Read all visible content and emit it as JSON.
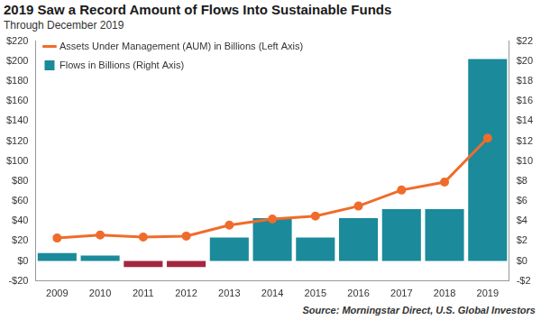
{
  "chart_data": {
    "type": "bar",
    "title": "2019 Saw a Record Amount of Flows Into Sustainable Funds",
    "subtitle": "Through December 2019",
    "source": "Source: Morningstar Direct, U.S. Global Investors",
    "categories": [
      "2009",
      "2010",
      "2011",
      "2012",
      "2013",
      "2014",
      "2015",
      "2016",
      "2017",
      "2018",
      "2019"
    ],
    "series": [
      {
        "name": "Flows in Billions (Right Axis)",
        "type": "bar",
        "axis": "y2",
        "colors": [
          "#1b8a9b",
          "#1b8a9b",
          "#a3273f",
          "#a3273f",
          "#1b8a9b",
          "#1b8a9b",
          "#1b8a9b",
          "#1b8a9b",
          "#1b8a9b",
          "#1b8a9b",
          "#1b8a9b"
        ],
        "values": [
          0.8,
          0.55,
          -0.6,
          -0.6,
          2.35,
          4.3,
          2.35,
          4.3,
          5.2,
          5.2,
          20.2
        ]
      },
      {
        "name": "Assets Under Management (AUM) in Billions (Left Axis)",
        "type": "line",
        "color": "#ef6c2b",
        "marker": "circle",
        "line_style": "solid",
        "values": [
          23,
          26,
          24,
          25,
          36,
          42,
          45,
          55,
          71,
          79,
          123
        ]
      }
    ],
    "ylim": [
      -20,
      220
    ],
    "yticks": [
      {
        "value": -20,
        "label": "-$20"
      },
      {
        "value": 0,
        "label": "$0"
      },
      {
        "value": 20,
        "label": "$20"
      },
      {
        "value": 40,
        "label": "$40"
      },
      {
        "value": 60,
        "label": "$60"
      },
      {
        "value": 80,
        "label": "$80"
      },
      {
        "value": 100,
        "label": "$100"
      },
      {
        "value": 120,
        "label": "$120"
      },
      {
        "value": 140,
        "label": "$140"
      },
      {
        "value": 160,
        "label": "$160"
      },
      {
        "value": 180,
        "label": "$180"
      },
      {
        "value": 200,
        "label": "$200"
      },
      {
        "value": 220,
        "label": "$220"
      }
    ],
    "y2lim": [
      -2,
      22
    ],
    "y2ticks": [
      {
        "value": -2,
        "label": "-$2"
      },
      {
        "value": 0,
        "label": "$0"
      },
      {
        "value": 2,
        "label": "$2"
      },
      {
        "value": 4,
        "label": "$4"
      },
      {
        "value": 6,
        "label": "$6"
      },
      {
        "value": 8,
        "label": "$8"
      },
      {
        "value": 10,
        "label": "$10"
      },
      {
        "value": 12,
        "label": "$12"
      },
      {
        "value": 14,
        "label": "$14"
      },
      {
        "value": 16,
        "label": "$16"
      },
      {
        "value": 18,
        "label": "$18"
      },
      {
        "value": 20,
        "label": "$20"
      },
      {
        "value": 22,
        "label": "$22"
      }
    ],
    "grid": false,
    "legend": "top-left"
  }
}
